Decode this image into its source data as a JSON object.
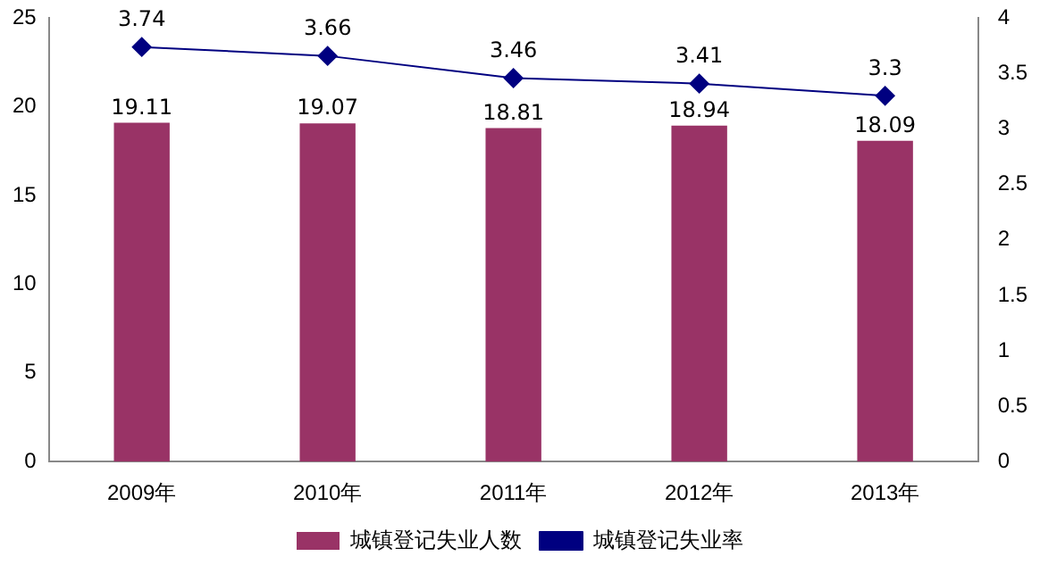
{
  "chart_data": {
    "type": "bar",
    "categories": [
      "2009年",
      "2010年",
      "2011年",
      "2012年",
      "2013年"
    ],
    "series": [
      {
        "name": "城镇登记失业人数",
        "color": "#993366",
        "values": [
          19.11,
          19.07,
          18.81,
          18.94,
          18.09
        ]
      },
      {
        "name": "城镇登记失业率",
        "type": "line",
        "axis": "y2",
        "color": "#000080",
        "marker": "diamond",
        "values": [
          3.74,
          3.66,
          3.46,
          3.41,
          3.3
        ]
      }
    ],
    "ylim": [
      0,
      25
    ],
    "yticks": [
      0,
      5,
      10,
      15,
      20,
      25
    ],
    "y2lim": [
      0,
      4
    ],
    "y2ticks": [
      0,
      0.5,
      1,
      1.5,
      2,
      2.5,
      3,
      3.5,
      4
    ],
    "grid": false,
    "legend": "bottom",
    "data_labels": true
  }
}
